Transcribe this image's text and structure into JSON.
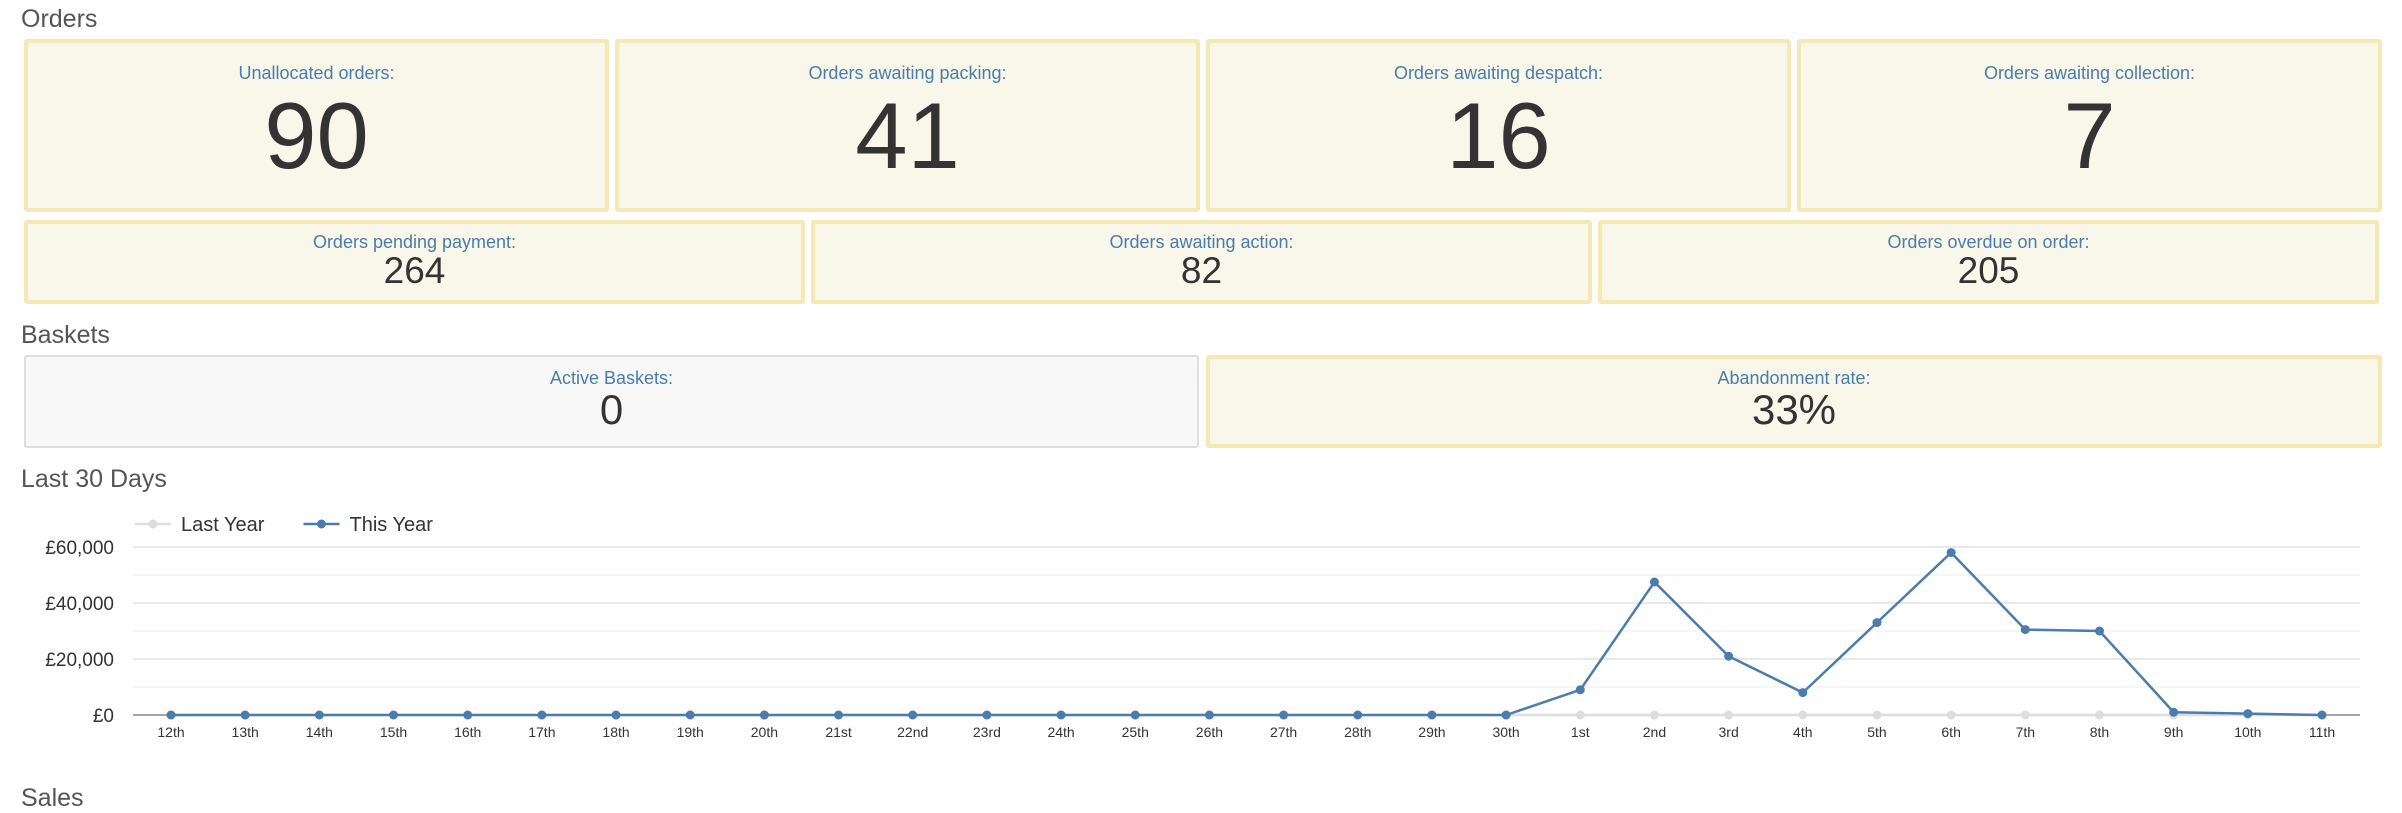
{
  "orders": {
    "title": "Orders",
    "top_tiles": [
      {
        "label": "Unallocated orders:",
        "value": "90"
      },
      {
        "label": "Orders awaiting packing:",
        "value": "41"
      },
      {
        "label": "Orders awaiting despatch:",
        "value": "16"
      },
      {
        "label": "Orders awaiting collection:",
        "value": "7"
      }
    ],
    "bottom_tiles": [
      {
        "label": "Orders pending payment:",
        "value": "264"
      },
      {
        "label": "Orders awaiting action:",
        "value": "82"
      },
      {
        "label": "Orders overdue on order:",
        "value": "205"
      }
    ]
  },
  "baskets": {
    "title": "Baskets",
    "tiles": [
      {
        "label": "Active Baskets:",
        "value": "0"
      },
      {
        "label": "Abandonment rate:",
        "value": "33%"
      }
    ]
  },
  "last30": {
    "title": "Last 30 Days"
  },
  "sales": {
    "title": "Sales"
  },
  "colors": {
    "tile_bg": "#f9f7ea",
    "tile_border": "#f5e8b5",
    "label_blue": "#4a7cac",
    "this_year": "#4a7cac",
    "last_year": "#dddddd"
  },
  "chart_data": {
    "type": "line",
    "categories": [
      "12th",
      "13th",
      "14th",
      "15th",
      "16th",
      "17th",
      "18th",
      "19th",
      "20th",
      "21st",
      "22nd",
      "23rd",
      "24th",
      "25th",
      "26th",
      "27th",
      "28th",
      "29th",
      "30th",
      "1st",
      "2nd",
      "3rd",
      "4th",
      "5th",
      "6th",
      "7th",
      "8th",
      "9th",
      "10th",
      "11th"
    ],
    "y_ticks": [
      "£0",
      "£20,000",
      "£40,000",
      "£60,000"
    ],
    "ylim": [
      0,
      60000
    ],
    "legend_position": "top-left",
    "grid": true,
    "series": [
      {
        "name": "Last Year",
        "color": "#dddddd",
        "values": [
          0,
          0,
          0,
          0,
          0,
          0,
          0,
          0,
          0,
          0,
          0,
          0,
          0,
          0,
          0,
          0,
          0,
          0,
          0,
          0,
          0,
          0,
          0,
          0,
          0,
          0,
          0,
          0,
          0,
          0
        ]
      },
      {
        "name": "This Year",
        "color": "#4a7cac",
        "values": [
          0,
          0,
          0,
          0,
          0,
          0,
          0,
          0,
          0,
          0,
          0,
          0,
          0,
          0,
          0,
          0,
          0,
          0,
          0,
          9000,
          47500,
          21000,
          8000,
          33000,
          58000,
          30500,
          30000,
          1000,
          500,
          0
        ]
      }
    ]
  }
}
